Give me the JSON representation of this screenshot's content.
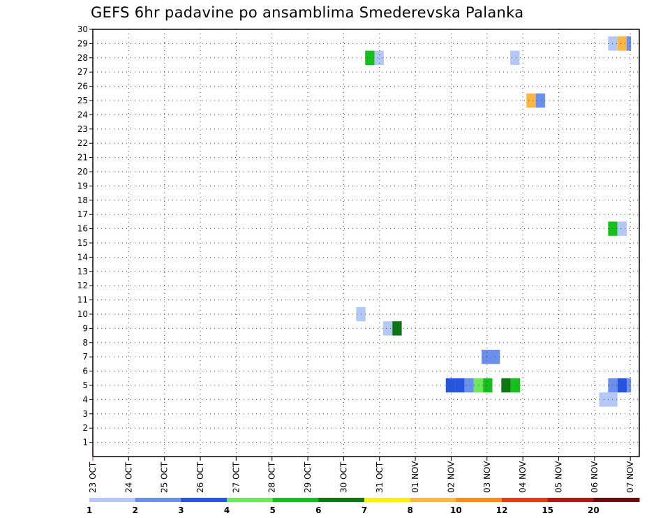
{
  "chart_data": {
    "type": "heatmap",
    "title": "GEFS 6hr padavine po ansamblima Smederevska Palanka",
    "xlabel": "",
    "ylabel": "",
    "x_ticks": [
      "23 OCT",
      "24 OCT",
      "25 OCT",
      "26 OCT",
      "27 OCT",
      "28 OCT",
      "29 OCT",
      "30 OCT",
      "31 OCT",
      "01 NOV",
      "02 NOV",
      "03 NOV",
      "04 NOV",
      "05 NOV",
      "06 NOV",
      "07 NOV"
    ],
    "y_ticks": [
      1,
      2,
      3,
      4,
      5,
      6,
      7,
      8,
      9,
      10,
      11,
      12,
      13,
      14,
      15,
      16,
      17,
      18,
      19,
      20,
      21,
      22,
      23,
      24,
      25,
      26,
      27,
      28,
      29,
      30
    ],
    "xlim_days": [
      0,
      15.25
    ],
    "ylim": [
      0,
      30
    ],
    "grid": true,
    "colorbar": {
      "labels": [
        "1",
        "2",
        "3",
        "4",
        "5",
        "6",
        "7",
        "8",
        "10",
        "12",
        "15",
        "20"
      ],
      "colors": [
        "#b3c8f5",
        "#6b90ec",
        "#2655df",
        "#6ee65c",
        "#15c01d",
        "#0b7612",
        "#fff200",
        "#ffb642",
        "#ff8c19",
        "#e43b14",
        "#b3160e",
        "#6d0a07"
      ]
    },
    "cells": [
      {
        "member": 29,
        "day": 14.38,
        "width": 0.26,
        "color": "#b3c8f5"
      },
      {
        "member": 29,
        "day": 14.64,
        "width": 0.26,
        "color": "#ffb642"
      },
      {
        "member": 29,
        "day": 14.9,
        "width": 0.12,
        "color": "#6b90ec"
      },
      {
        "member": 28,
        "day": 7.6,
        "width": 0.26,
        "color": "#15c01d"
      },
      {
        "member": 28,
        "day": 7.86,
        "width": 0.26,
        "color": "#b3c8f5"
      },
      {
        "member": 28,
        "day": 11.65,
        "width": 0.26,
        "color": "#b3c8f5"
      },
      {
        "member": 25,
        "day": 12.1,
        "width": 0.26,
        "color": "#ffb642"
      },
      {
        "member": 25,
        "day": 12.36,
        "width": 0.26,
        "color": "#6b90ec"
      },
      {
        "member": 16,
        "day": 14.38,
        "width": 0.26,
        "color": "#15c01d"
      },
      {
        "member": 16,
        "day": 14.64,
        "width": 0.26,
        "color": "#b3c8f5"
      },
      {
        "member": 10,
        "day": 7.35,
        "width": 0.26,
        "color": "#b3c8f5"
      },
      {
        "member": 9,
        "day": 8.1,
        "width": 0.26,
        "color": "#b3c8f5"
      },
      {
        "member": 9,
        "day": 8.36,
        "width": 0.26,
        "color": "#0b7612"
      },
      {
        "member": 7,
        "day": 10.85,
        "width": 0.51,
        "color": "#6b90ec"
      },
      {
        "member": 5,
        "day": 9.85,
        "width": 0.26,
        "color": "#2655df"
      },
      {
        "member": 5,
        "day": 10.11,
        "width": 0.26,
        "color": "#2655df"
      },
      {
        "member": 5,
        "day": 10.37,
        "width": 0.26,
        "color": "#6b90ec"
      },
      {
        "member": 5,
        "day": 10.63,
        "width": 0.26,
        "color": "#6ee65c"
      },
      {
        "member": 5,
        "day": 10.89,
        "width": 0.26,
        "color": "#15c01d"
      },
      {
        "member": 5,
        "day": 11.4,
        "width": 0.26,
        "color": "#0b7612"
      },
      {
        "member": 5,
        "day": 11.66,
        "width": 0.26,
        "color": "#15c01d"
      },
      {
        "member": 5,
        "day": 14.38,
        "width": 0.26,
        "color": "#6b90ec"
      },
      {
        "member": 5,
        "day": 14.64,
        "width": 0.26,
        "color": "#2655df"
      },
      {
        "member": 5,
        "day": 14.9,
        "width": 0.12,
        "color": "#6b90ec"
      },
      {
        "member": 4,
        "day": 14.13,
        "width": 0.51,
        "color": "#b3c8f5"
      }
    ]
  }
}
